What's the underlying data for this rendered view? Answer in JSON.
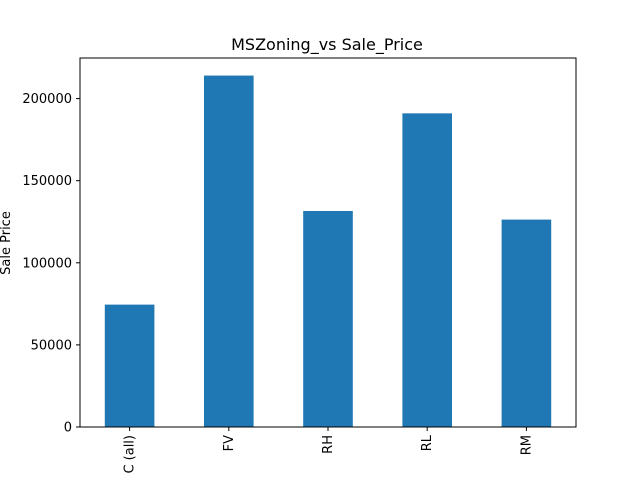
{
  "chart_data": {
    "type": "bar",
    "title": "MSZoning_vs Sale_Price",
    "xlabel": "",
    "ylabel": "Sale Price",
    "categories": [
      "C (all)",
      "FV",
      "RH",
      "RL",
      "RM"
    ],
    "values": [
      74528,
      214014,
      131558,
      191005,
      126317
    ],
    "ylim": [
      0,
      224714
    ],
    "yticks": [
      0,
      50000,
      100000,
      150000,
      200000
    ],
    "ytick_labels": [
      "0",
      "50000",
      "100000",
      "150000",
      "200000"
    ],
    "grid": false,
    "legend": "none",
    "bar_color": "#1f77b4"
  }
}
